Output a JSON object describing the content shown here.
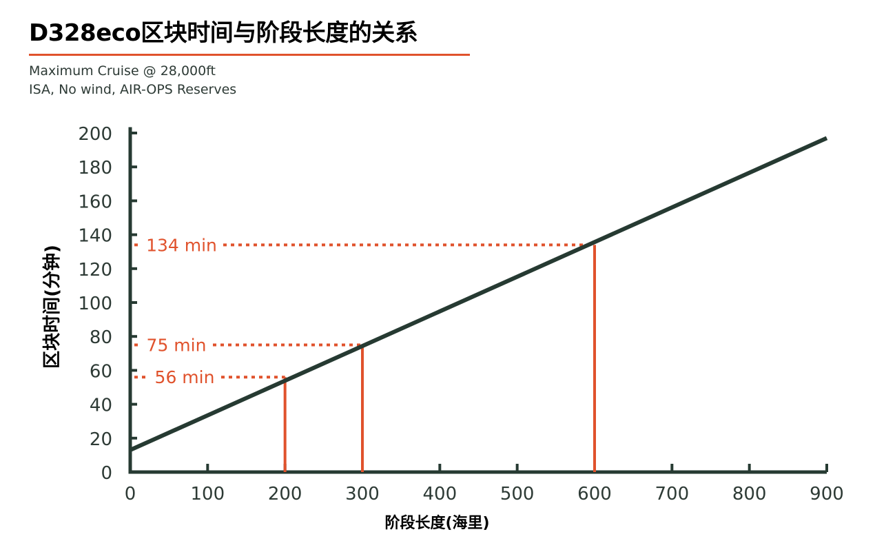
{
  "title": "D328eco区块时间与阶段长度的关系",
  "subtitle_lines": [
    "Maximum Cruise @ 28,000ft",
    "ISA, No wind, AIR-OPS Reserves"
  ],
  "colors": {
    "line": "#263a32",
    "accent": "#e0522c",
    "axis": "#263a32",
    "text": "#2d3a35"
  },
  "chart_data": {
    "type": "line",
    "xlabel": "阶段长度(海里)",
    "ylabel": "区块时间(分钟)",
    "xlim": [
      0,
      900
    ],
    "ylim": [
      0,
      200
    ],
    "x_ticks": [
      0,
      100,
      200,
      300,
      400,
      500,
      600,
      700,
      800,
      900
    ],
    "y_ticks": [
      0,
      20,
      40,
      60,
      80,
      100,
      120,
      140,
      160,
      180,
      200
    ],
    "grid": false,
    "series": [
      {
        "x": [
          0,
          900
        ],
        "y": [
          13,
          197
        ]
      }
    ],
    "annotations": [
      {
        "x": 200,
        "y": 56,
        "label": "56 min"
      },
      {
        "x": 300,
        "y": 75,
        "label": "75 min"
      },
      {
        "x": 600,
        "y": 134,
        "label": "134 min"
      }
    ]
  }
}
